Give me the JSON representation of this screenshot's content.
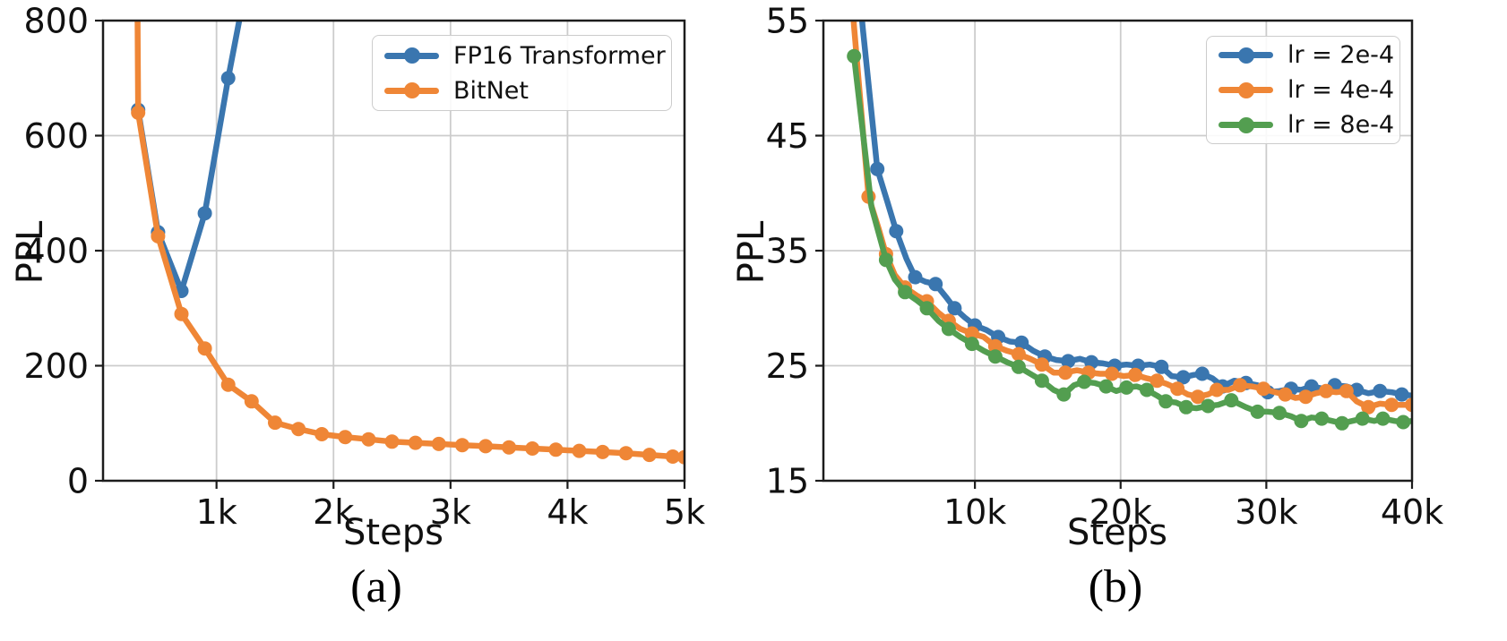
{
  "figure": {
    "background": "#ffffff",
    "captions": {
      "a": "(a)",
      "b": "(b)"
    }
  },
  "colors": {
    "blue": "#3A76AF",
    "orange": "#EF8636",
    "green": "#539E50",
    "grid": "#CCCCCC",
    "spine": "#1C1C1C",
    "tick_label": "#111111"
  },
  "chart_data": [
    {
      "type": "line",
      "panel": "a",
      "title": "",
      "xlabel": "Steps",
      "ylabel": "PPL",
      "xlim": [
        30,
        5000
      ],
      "ylim": [
        0,
        800
      ],
      "grid": true,
      "legend_position": "upper right",
      "xticks": [
        {
          "v": 1000,
          "label": "1k"
        },
        {
          "v": 2000,
          "label": "2k"
        },
        {
          "v": 3000,
          "label": "3k"
        },
        {
          "v": 4000,
          "label": "4k"
        },
        {
          "v": 5000,
          "label": "5k"
        }
      ],
      "yticks": [
        {
          "v": 0,
          "label": "0"
        },
        {
          "v": 200,
          "label": "200"
        },
        {
          "v": 400,
          "label": "400"
        },
        {
          "v": 600,
          "label": "600"
        },
        {
          "v": 800,
          "label": "800"
        }
      ],
      "series": [
        {
          "name": "FP16 Transformer",
          "color": "blue",
          "markevery": 1,
          "points": [
            [
              330,
              645
            ],
            [
              500,
              432
            ],
            [
              700,
              330
            ],
            [
              900,
              465
            ],
            [
              1100,
              700
            ],
            [
              1270,
              880
            ]
          ]
        },
        {
          "name": "BitNet",
          "color": "orange",
          "markevery": 1,
          "points": [
            [
              300,
              1600
            ],
            [
              330,
              640
            ],
            [
              500,
              425
            ],
            [
              700,
              290
            ],
            [
              900,
              230
            ],
            [
              1100,
              167
            ],
            [
              1300,
              138
            ],
            [
              1500,
              101
            ],
            [
              1700,
              90
            ],
            [
              1900,
              81
            ],
            [
              2100,
              76
            ],
            [
              2300,
              72
            ],
            [
              2500,
              68
            ],
            [
              2700,
              66
            ],
            [
              2900,
              64
            ],
            [
              3100,
              62
            ],
            [
              3300,
              60
            ],
            [
              3500,
              58
            ],
            [
              3700,
              56
            ],
            [
              3900,
              54
            ],
            [
              4100,
              52
            ],
            [
              4300,
              50
            ],
            [
              4500,
              48
            ],
            [
              4700,
              45
            ],
            [
              4900,
              42
            ],
            [
              5000,
              41
            ]
          ]
        }
      ]
    },
    {
      "type": "line",
      "panel": "b",
      "title": "",
      "xlabel": "Steps",
      "ylabel": "PPL",
      "xlim": [
        -400,
        40000
      ],
      "ylim": [
        15,
        55
      ],
      "grid": true,
      "legend_position": "upper right",
      "xticks": [
        {
          "v": 10000,
          "label": "10k"
        },
        {
          "v": 20000,
          "label": "20k"
        },
        {
          "v": 30000,
          "label": "30k"
        },
        {
          "v": 40000,
          "label": "40k"
        }
      ],
      "yticks": [
        {
          "v": 15,
          "label": "15"
        },
        {
          "v": 25,
          "label": "25"
        },
        {
          "v": 35,
          "label": "35"
        },
        {
          "v": 45,
          "label": "45"
        },
        {
          "v": 55,
          "label": "55"
        }
      ],
      "series": [
        {
          "name": "lr = 2e-4",
          "color": "blue",
          "markevery": 2,
          "points": [
            [
              2000,
              58.5
            ],
            [
              2300,
              54.4
            ],
            [
              3300,
              42.1
            ],
            [
              4000,
              39.2
            ],
            [
              4600,
              36.7
            ],
            [
              5300,
              34.3
            ],
            [
              5900,
              32.7
            ],
            [
              6600,
              32.3
            ],
            [
              7300,
              32.1
            ],
            [
              8000,
              31.0
            ],
            [
              8600,
              30.0
            ],
            [
              9300,
              29.2
            ],
            [
              10000,
              28.5
            ],
            [
              10800,
              28.1
            ],
            [
              11600,
              27.5
            ],
            [
              12400,
              27.1
            ],
            [
              13200,
              27.0
            ],
            [
              14000,
              26.3
            ],
            [
              14800,
              25.8
            ],
            [
              15600,
              25.5
            ],
            [
              16400,
              25.4
            ],
            [
              17200,
              25.6
            ],
            [
              18000,
              25.3
            ],
            [
              18800,
              25.2
            ],
            [
              19600,
              25.0
            ],
            [
              20400,
              25.1
            ],
            [
              21200,
              25.0
            ],
            [
              22000,
              25.1
            ],
            [
              22800,
              24.9
            ],
            [
              23500,
              24.1
            ],
            [
              24300,
              24.0
            ],
            [
              25000,
              24.2
            ],
            [
              25600,
              24.3
            ],
            [
              26300,
              23.9
            ],
            [
              27000,
              23.2
            ],
            [
              27800,
              23.7
            ],
            [
              28600,
              23.5
            ],
            [
              29400,
              23.3
            ],
            [
              30100,
              22.7
            ],
            [
              30900,
              22.8
            ],
            [
              31700,
              23.0
            ],
            [
              32400,
              22.9
            ],
            [
              33100,
              23.2
            ],
            [
              33900,
              23.0
            ],
            [
              34700,
              23.3
            ],
            [
              35500,
              23.2
            ],
            [
              36200,
              22.9
            ],
            [
              37000,
              22.6
            ],
            [
              37800,
              22.8
            ],
            [
              38600,
              22.7
            ],
            [
              39300,
              22.5
            ],
            [
              40000,
              22.4
            ]
          ]
        },
        {
          "name": "lr = 4e-4",
          "color": "orange",
          "markevery": 2,
          "points": [
            [
              1400,
              60.0
            ],
            [
              1700,
              54.5
            ],
            [
              2700,
              39.7
            ],
            [
              3400,
              36.9
            ],
            [
              3900,
              34.7
            ],
            [
              4500,
              32.9
            ],
            [
              5200,
              31.8
            ],
            [
              6000,
              31.1
            ],
            [
              6700,
              30.6
            ],
            [
              7500,
              29.6
            ],
            [
              8200,
              28.9
            ],
            [
              9000,
              28.2
            ],
            [
              9800,
              27.8
            ],
            [
              10600,
              27.5
            ],
            [
              11400,
              26.7
            ],
            [
              12200,
              26.3
            ],
            [
              13000,
              26.0
            ],
            [
              13800,
              25.6
            ],
            [
              14600,
              25.1
            ],
            [
              15400,
              24.4
            ],
            [
              16200,
              24.4
            ],
            [
              17000,
              24.6
            ],
            [
              17800,
              24.4
            ],
            [
              18600,
              24.3
            ],
            [
              19400,
              24.3
            ],
            [
              20200,
              24.1
            ],
            [
              21000,
              24.2
            ],
            [
              21800,
              23.9
            ],
            [
              22500,
              23.7
            ],
            [
              23200,
              23.4
            ],
            [
              23900,
              23.0
            ],
            [
              24600,
              22.5
            ],
            [
              25300,
              22.3
            ],
            [
              26000,
              22.5
            ],
            [
              26600,
              22.9
            ],
            [
              27400,
              22.9
            ],
            [
              28200,
              23.3
            ],
            [
              29000,
              23.2
            ],
            [
              29800,
              23.0
            ],
            [
              30600,
              22.7
            ],
            [
              31300,
              22.5
            ],
            [
              32000,
              22.2
            ],
            [
              32700,
              22.3
            ],
            [
              33400,
              22.6
            ],
            [
              34100,
              22.8
            ],
            [
              34800,
              22.7
            ],
            [
              35500,
              22.8
            ],
            [
              36200,
              21.9
            ],
            [
              37000,
              21.4
            ],
            [
              37800,
              21.7
            ],
            [
              38600,
              21.6
            ],
            [
              39400,
              21.6
            ],
            [
              40000,
              21.6
            ]
          ]
        },
        {
          "name": "lr = 8e-4",
          "color": "green",
          "markevery": 2,
          "points": [
            [
              1700,
              51.9
            ],
            [
              2900,
              38.8
            ],
            [
              3900,
              34.2
            ],
            [
              4500,
              32.5
            ],
            [
              5200,
              31.4
            ],
            [
              6000,
              30.7
            ],
            [
              6700,
              30.0
            ],
            [
              7500,
              28.9
            ],
            [
              8200,
              28.2
            ],
            [
              9000,
              27.5
            ],
            [
              9800,
              26.9
            ],
            [
              10600,
              26.3
            ],
            [
              11400,
              25.8
            ],
            [
              12200,
              25.3
            ],
            [
              13000,
              24.9
            ],
            [
              13800,
              24.3
            ],
            [
              14600,
              23.7
            ],
            [
              15400,
              22.9
            ],
            [
              16100,
              22.5
            ],
            [
              16800,
              23.3
            ],
            [
              17500,
              23.6
            ],
            [
              18200,
              23.5
            ],
            [
              19000,
              23.2
            ],
            [
              19700,
              22.8
            ],
            [
              20400,
              23.1
            ],
            [
              21100,
              23.2
            ],
            [
              21800,
              22.9
            ],
            [
              22500,
              22.4
            ],
            [
              23100,
              21.9
            ],
            [
              23800,
              21.8
            ],
            [
              24500,
              21.4
            ],
            [
              25200,
              21.3
            ],
            [
              26000,
              21.5
            ],
            [
              26700,
              21.6
            ],
            [
              27600,
              22.0
            ],
            [
              28600,
              21.4
            ],
            [
              29400,
              21.0
            ],
            [
              30100,
              21.0
            ],
            [
              30900,
              20.9
            ],
            [
              31700,
              20.6
            ],
            [
              32400,
              20.2
            ],
            [
              33100,
              20.5
            ],
            [
              33800,
              20.4
            ],
            [
              34500,
              20.2
            ],
            [
              35200,
              20.0
            ],
            [
              35900,
              20.2
            ],
            [
              36600,
              20.4
            ],
            [
              37400,
              20.2
            ],
            [
              38000,
              20.4
            ],
            [
              38800,
              20.2
            ],
            [
              39400,
              20.1
            ],
            [
              40000,
              20.2
            ]
          ]
        }
      ]
    }
  ]
}
